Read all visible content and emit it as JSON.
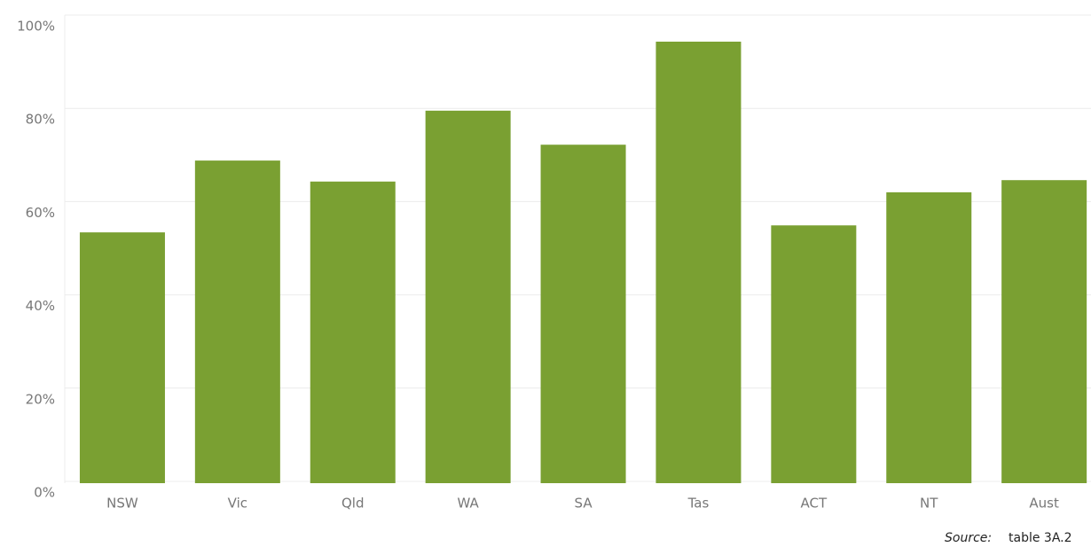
{
  "chart_data": {
    "type": "bar",
    "categories": [
      "NSW",
      "Vic",
      "Qld",
      "WA",
      "SA",
      "Tas",
      "ACT",
      "NT",
      "Aust"
    ],
    "values": [
      53.4,
      68.8,
      64.3,
      79.5,
      72.2,
      94.3,
      54.9,
      62.0,
      64.6
    ],
    "color": "#7aa032",
    "ylim": [
      0,
      100
    ],
    "yticks": [
      {
        "value": 0,
        "label": "0%"
      },
      {
        "value": 20,
        "label": "20%"
      },
      {
        "value": 40,
        "label": "40%"
      },
      {
        "value": 60,
        "label": "60%"
      },
      {
        "value": 80,
        "label": "80%"
      },
      {
        "value": 100,
        "label": "100%"
      }
    ],
    "grid": true,
    "source_label": "Source:",
    "source": "table 3A.2"
  }
}
